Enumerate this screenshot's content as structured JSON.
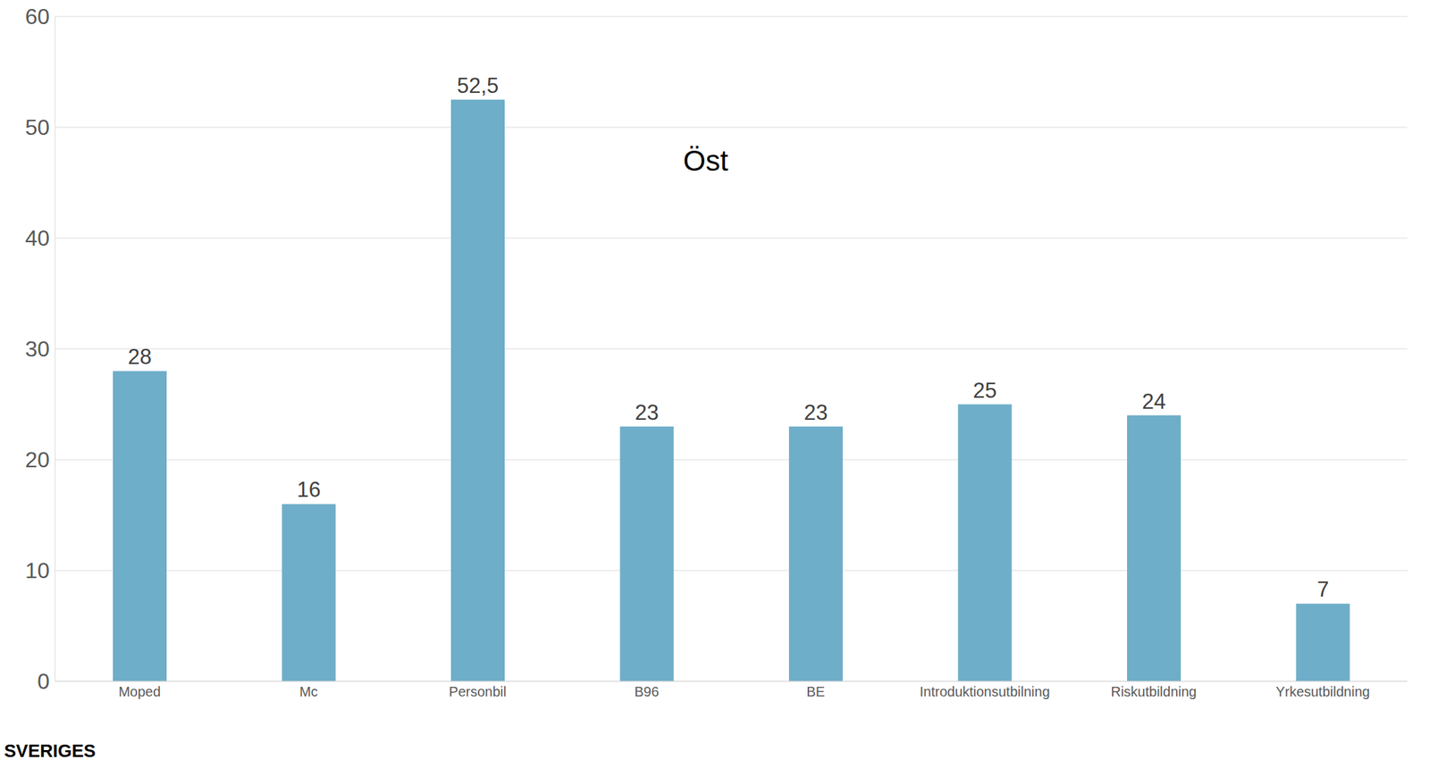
{
  "chart_data": {
    "type": "bar",
    "title": "Öst",
    "categories": [
      "Moped",
      "Mc",
      "Personbil",
      "B96",
      "BE",
      "Introduktionsutbilning",
      "Riskutbildning",
      "Yrkesutbildning"
    ],
    "values": [
      28,
      16,
      52.5,
      23,
      23,
      25,
      24,
      7
    ],
    "value_labels": [
      "28",
      "16",
      "52,5",
      "23",
      "23",
      "25",
      "24",
      "7"
    ],
    "color": "#6eaec8",
    "ylim": [
      0,
      60
    ],
    "yticks": [
      0,
      10,
      20,
      30,
      40,
      50,
      60
    ],
    "grid": true,
    "data_labels": true,
    "annotations": [
      "SVERIGES"
    ]
  }
}
